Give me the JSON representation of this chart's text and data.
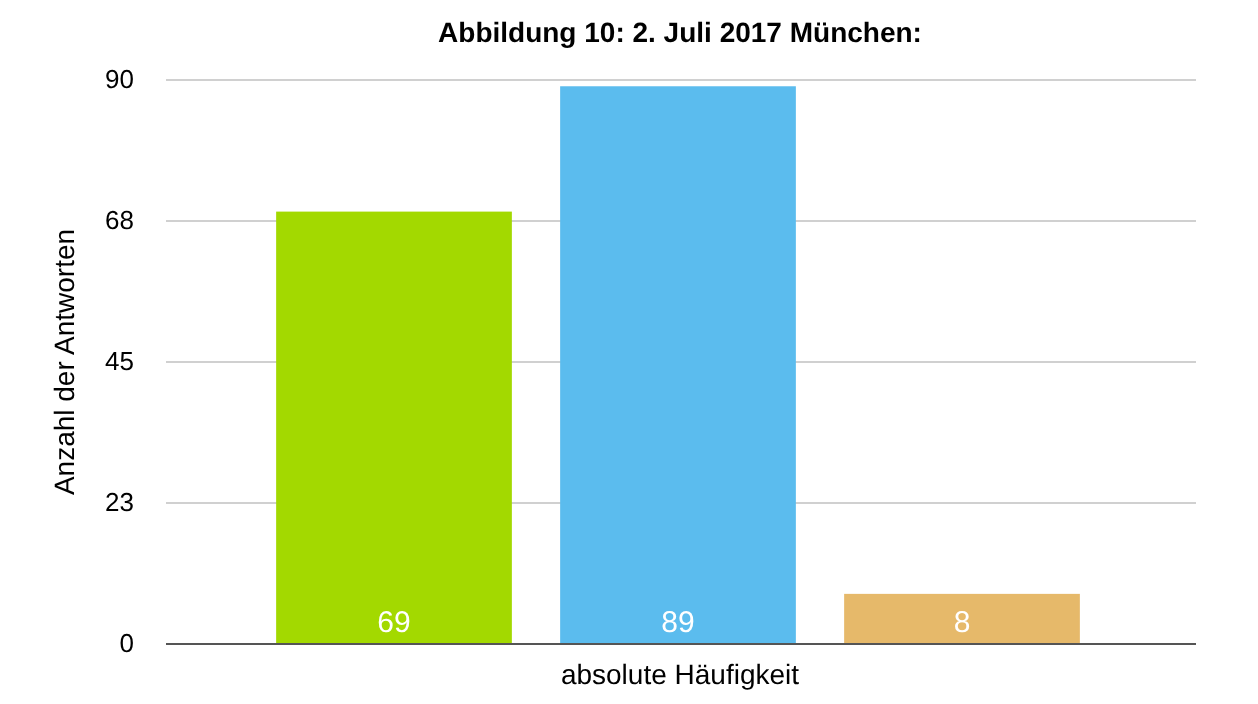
{
  "chart_data": {
    "type": "bar",
    "title": "Abbildung 10: 2. Juli 2017 München:",
    "xlabel": "absolute Häufigkeit",
    "ylabel": "Anzahl der Antworten",
    "categories": [
      null,
      null,
      null
    ],
    "values": [
      69,
      89,
      8
    ],
    "colors": [
      "#a3d900",
      "#5bbcee",
      "#e6b96a"
    ],
    "ylim": [
      0,
      90
    ],
    "yticks": [
      0,
      {
        "value": 22.5,
        "label": "23"
      },
      45,
      {
        "value": 67.5,
        "label": "68"
      },
      90
    ],
    "grid": "y",
    "data_labels": true
  }
}
